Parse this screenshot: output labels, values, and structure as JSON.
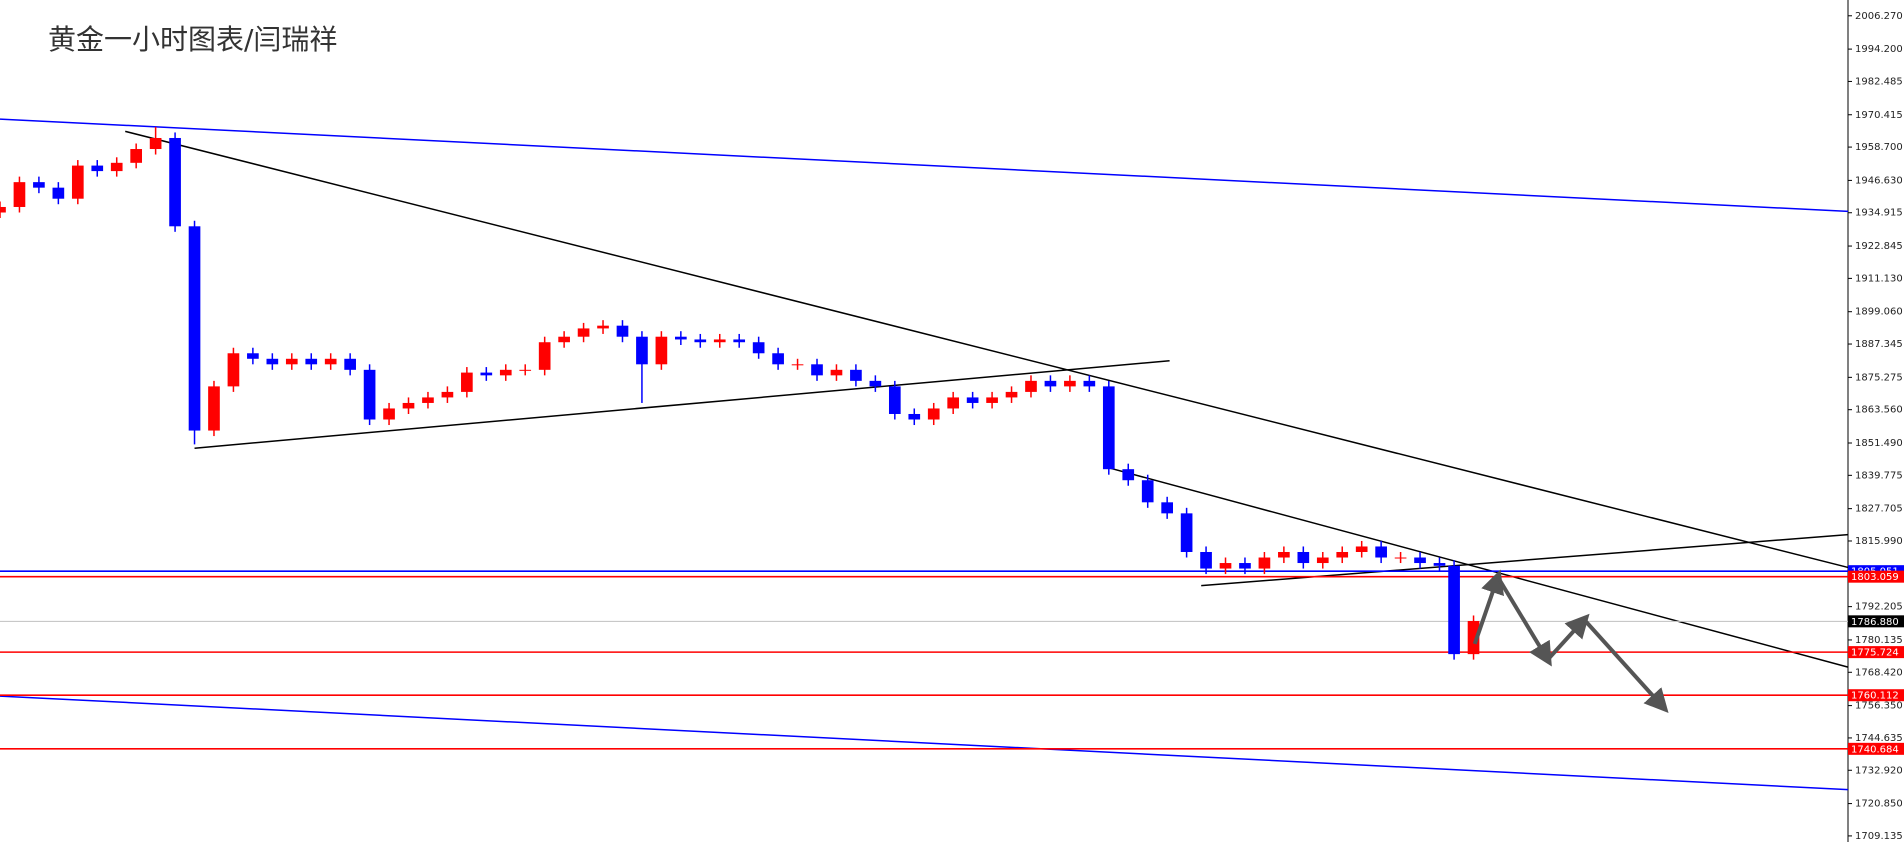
{
  "chart_data": {
    "type": "candlestick",
    "title": "黄金一小时图表/闫瑞祥",
    "x": [
      0,
      4,
      8,
      12,
      16,
      20,
      24,
      28,
      32,
      36,
      40,
      44,
      48,
      52,
      56,
      60,
      64,
      68,
      72,
      76,
      80,
      84,
      88,
      92,
      96,
      100,
      104,
      108,
      112,
      116,
      120,
      124,
      128,
      132,
      136,
      140,
      144,
      148,
      152,
      156,
      160,
      164,
      168,
      172,
      176,
      180,
      184,
      188,
      192,
      196,
      200,
      204,
      208,
      212,
      216,
      220,
      224,
      228,
      232,
      236,
      240,
      244,
      248,
      252,
      256,
      260,
      264,
      268,
      272,
      276,
      280,
      284,
      288,
      292,
      296,
      299,
      303
    ],
    "open": [
      1935,
      1937,
      1946,
      1944,
      1940,
      1952,
      1950,
      1953,
      1958,
      1962,
      1930,
      1856,
      1872,
      1884,
      1882,
      1880,
      1882,
      1880,
      1882,
      1878,
      1860,
      1864,
      1866,
      1868,
      1870,
      1877,
      1876,
      1878,
      1878,
      1888,
      1890,
      1893,
      1894,
      1890,
      1880,
      1890,
      1889,
      1888,
      1889,
      1888,
      1884,
      1880,
      1880,
      1876,
      1878,
      1874,
      1872,
      1862,
      1860,
      1864,
      1868,
      1866,
      1868,
      1870,
      1874,
      1872,
      1874,
      1872,
      1842,
      1838,
      1830,
      1826,
      1812,
      1806,
      1808,
      1806,
      1810,
      1812,
      1808,
      1810,
      1812,
      1814,
      1810,
      1810,
      1808,
      1807,
      1775
    ],
    "high": [
      1939,
      1948,
      1948,
      1946,
      1954,
      1954,
      1955,
      1960,
      1966,
      1964,
      1932,
      1874,
      1886,
      1886,
      1884,
      1884,
      1884,
      1884,
      1884,
      1880,
      1866,
      1868,
      1870,
      1872,
      1879,
      1879,
      1880,
      1880,
      1890,
      1892,
      1895,
      1896,
      1896,
      1892,
      1892,
      1892,
      1891,
      1891,
      1891,
      1890,
      1886,
      1882,
      1882,
      1880,
      1880,
      1876,
      1874,
      1864,
      1866,
      1870,
      1870,
      1870,
      1872,
      1876,
      1876,
      1876,
      1876,
      1874,
      1844,
      1840,
      1832,
      1828,
      1814,
      1810,
      1810,
      1812,
      1814,
      1814,
      1812,
      1814,
      1816,
      1816,
      1812,
      1812,
      1810,
      1809,
      1789
    ],
    "low": [
      1933,
      1935,
      1942,
      1938,
      1938,
      1948,
      1948,
      1951,
      1956,
      1928,
      1851,
      1854,
      1870,
      1880,
      1878,
      1878,
      1878,
      1878,
      1876,
      1858,
      1858,
      1862,
      1864,
      1866,
      1868,
      1874,
      1874,
      1876,
      1876,
      1886,
      1888,
      1891,
      1888,
      1866,
      1878,
      1887,
      1886,
      1886,
      1886,
      1882,
      1878,
      1878,
      1874,
      1874,
      1872,
      1870,
      1860,
      1858,
      1858,
      1862,
      1864,
      1864,
      1866,
      1868,
      1870,
      1870,
      1870,
      1840,
      1836,
      1828,
      1824,
      1810,
      1804,
      1804,
      1804,
      1804,
      1808,
      1806,
      1806,
      1808,
      1810,
      1808,
      1808,
      1806,
      1805,
      1773,
      1773
    ],
    "close": [
      1937,
      1946,
      1944,
      1940,
      1952,
      1950,
      1953,
      1958,
      1962,
      1930,
      1856,
      1872,
      1884,
      1882,
      1880,
      1882,
      1880,
      1882,
      1878,
      1860,
      1864,
      1866,
      1868,
      1870,
      1877,
      1876,
      1878,
      1878,
      1888,
      1890,
      1893,
      1894,
      1890,
      1880,
      1890,
      1889,
      1888,
      1889,
      1888,
      1884,
      1880,
      1880,
      1876,
      1878,
      1874,
      1872,
      1862,
      1860,
      1864,
      1868,
      1866,
      1868,
      1870,
      1874,
      1872,
      1874,
      1872,
      1842,
      1838,
      1830,
      1826,
      1812,
      1806,
      1808,
      1806,
      1810,
      1812,
      1808,
      1810,
      1812,
      1814,
      1810,
      1810,
      1808,
      1807,
      1775,
      1787
    ],
    "up_color": "#ff0000",
    "down_color": "#0000ff",
    "xlim": [
      0,
      380
    ],
    "ylim": [
      1706.93,
      2011.99
    ],
    "yticks": [
      {
        "value": 2006.27,
        "label": "2006.270"
      },
      {
        "value": 1994.2,
        "label": "1994.200"
      },
      1982.485,
      1970.415,
      {
        "value": 1958.7,
        "label": "1958.700"
      },
      {
        "value": 1946.63,
        "label": "1946.630"
      },
      1934.915,
      1922.845,
      {
        "value": 1911.13,
        "label": "1911.130"
      },
      {
        "value": 1899.06,
        "label": "1899.060"
      },
      1887.345,
      1875.275,
      {
        "value": 1863.56,
        "label": "1863.560"
      },
      {
        "value": 1851.49,
        "label": "1851.490"
      },
      1839.775,
      1827.705,
      {
        "value": 1815.99,
        "label": "1815.990"
      },
      1792.205,
      1780.135,
      {
        "value": 1768.42,
        "label": "1768.420"
      },
      {
        "value": 1756.35,
        "label": "1756.350"
      },
      1744.635,
      {
        "value": 1732.92,
        "label": "1732.920"
      },
      {
        "value": 1720.85,
        "label": "1720.850"
      },
      1709.135
    ],
    "levels": [
      {
        "value": 1805.051,
        "color": "#0000ff"
      },
      {
        "value": 1803.059,
        "color": "#ff0000"
      },
      {
        "value": 1786.88,
        "label": "1786.880",
        "color": "#000000"
      },
      {
        "value": 1775.724,
        "color": "#ff0000"
      },
      {
        "value": 1760.112,
        "color": "#ff0000"
      },
      {
        "value": 1740.684,
        "color": "#ff0000"
      }
    ],
    "trendlines": [
      {
        "x": [
          0,
          380
        ],
        "y": [
          1968.85,
          1935.4
        ],
        "color": "#0000ff"
      },
      {
        "x": [
          0,
          380
        ],
        "y": [
          1759.8,
          1725.9
        ],
        "color": "#0000ff"
      },
      {
        "x": [
          25.75,
          380
        ],
        "y": [
          1964.4,
          1806.4
        ],
        "color": "#000000"
      },
      {
        "x": [
          40,
          240.5
        ],
        "y": [
          1849.6,
          1881.3
        ],
        "color": "#000000"
      },
      {
        "x": [
          228,
          380
        ],
        "y": [
          1842.5,
          1770.3
        ],
        "color": "#000000"
      },
      {
        "x": [
          247,
          380
        ],
        "y": [
          1799.8,
          1818.3
        ],
        "color": "#000000"
      }
    ],
    "projection": {
      "x": [
        303.25,
        308,
        318.25,
        325.75,
        342
      ],
      "y": [
        1778.7,
        1802.9,
        1773.0,
        1787.5,
        1755.8
      ],
      "color": "#555555"
    }
  }
}
